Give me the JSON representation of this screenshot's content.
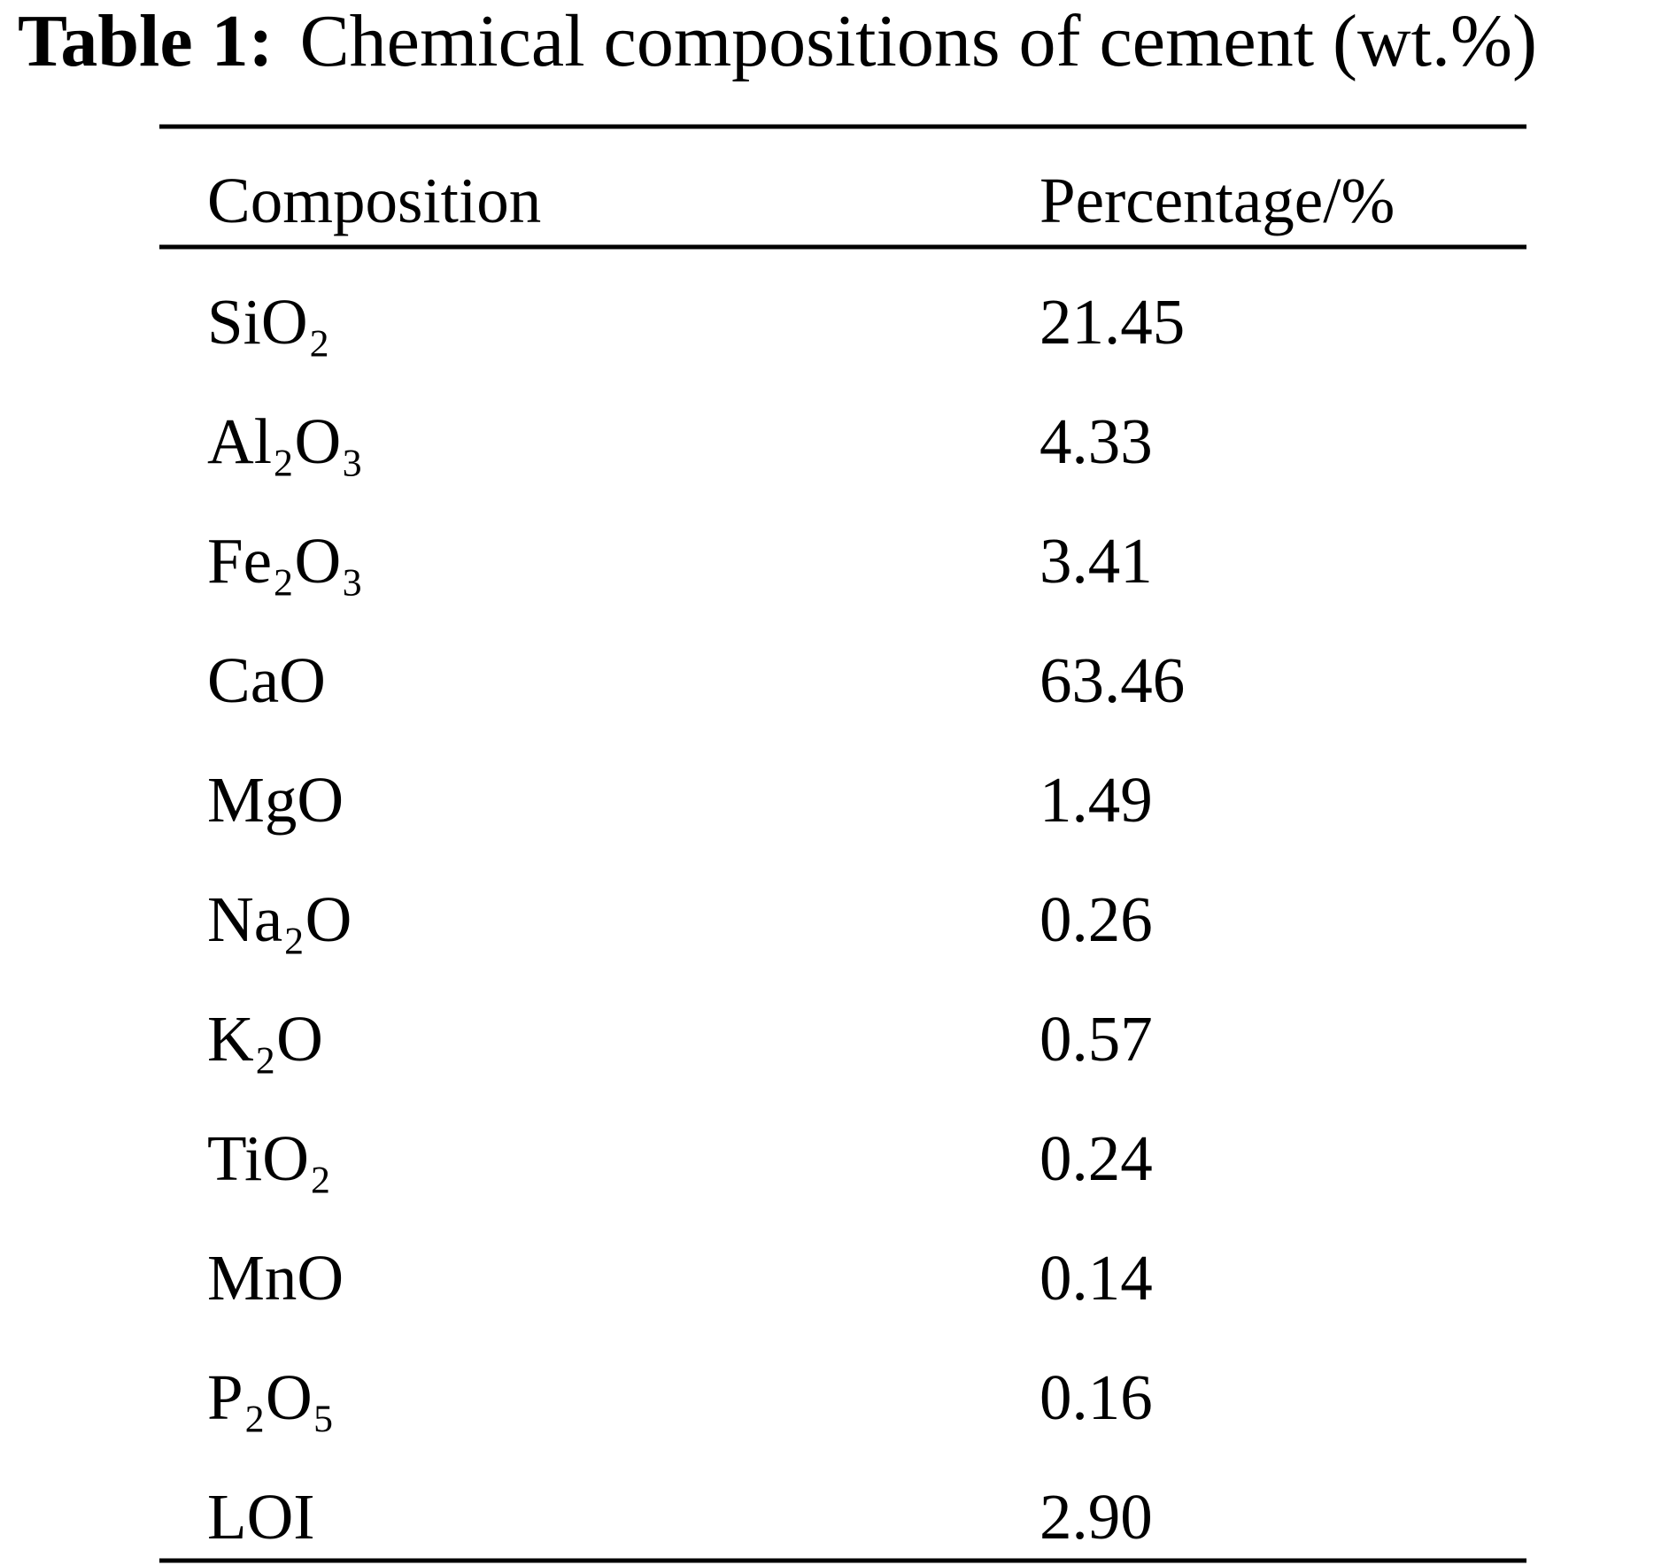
{
  "caption": {
    "label": "Table 1:",
    "text": "Chemical compositions of cement (wt.%)"
  },
  "table": {
    "header": [
      "Composition",
      "Percentage/%"
    ],
    "rows": [
      [
        "SiO₂",
        "21.45"
      ],
      [
        "Al₂O₃",
        "4.33"
      ],
      [
        "Fe₂O₃",
        "3.41"
      ],
      [
        "CaO",
        "63.46"
      ],
      [
        "MgO",
        "1.49"
      ],
      [
        "Na₂O",
        "0.26"
      ],
      [
        "K₂O",
        "0.57"
      ],
      [
        "TiO₂",
        "0.24"
      ],
      [
        "MnO",
        "0.14"
      ],
      [
        "P₂O₅",
        "0.16"
      ],
      [
        "LOI",
        "2.90"
      ]
    ]
  }
}
